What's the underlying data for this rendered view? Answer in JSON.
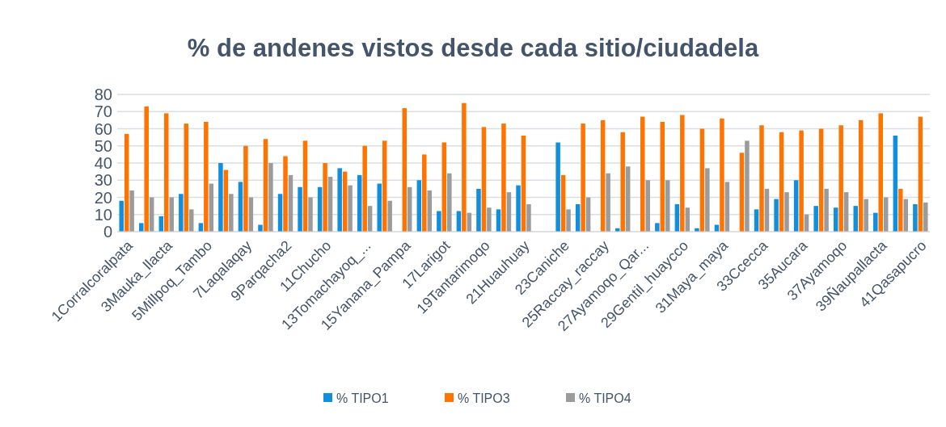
{
  "chart_data": {
    "type": "bar",
    "title": "% de andenes vistos desde cada sitio/ciudadela",
    "categories": [
      "1Corralcoralpata",
      null,
      "3Mauka_llacta",
      null,
      "5Millpoq_Tambo",
      null,
      "7Laqalaqay",
      null,
      "9Parqacha2",
      null,
      "11Chucho",
      null,
      "13Tomachayoq_...",
      null,
      "15Yanana_Pampa",
      null,
      "17Larigot",
      null,
      "19Tantarimoqo",
      null,
      "21Huauhuay",
      null,
      "23Caniche",
      null,
      "25Raccay_raccay",
      null,
      "27Ayamoqo_Qar...",
      null,
      "29Gentil_huaycco",
      null,
      "31Maya_maya",
      null,
      "33Ccecca",
      null,
      "35Aucara",
      null,
      "37Ayamoqo",
      null,
      "39Ñaupallacta",
      null,
      "41Qasapucro"
    ],
    "series": [
      {
        "name": "% TIPO1",
        "color": "#0f8fde",
        "values": [
          18,
          5,
          9,
          22,
          5,
          40,
          29,
          4,
          22,
          26,
          26,
          37,
          33,
          28,
          0,
          30,
          12,
          12,
          25,
          13,
          27,
          0,
          52,
          16,
          0,
          2,
          0,
          5,
          16,
          2,
          4,
          0,
          13,
          19,
          30,
          15,
          14,
          15,
          11,
          56,
          16
        ]
      },
      {
        "name": "% TIPO3",
        "color": "#ff7300",
        "values": [
          57,
          73,
          69,
          63,
          64,
          36,
          50,
          54,
          44,
          53,
          40,
          35,
          50,
          53,
          72,
          45,
          52,
          75,
          61,
          63,
          56,
          0,
          33,
          63,
          65,
          58,
          67,
          64,
          68,
          60,
          66,
          46,
          62,
          58,
          59,
          60,
          62,
          65,
          69,
          25,
          67
        ]
      },
      {
        "name": "% TIPO4",
        "color": "#9b9b9b",
        "values": [
          24,
          20,
          20,
          13,
          28,
          22,
          20,
          40,
          33,
          20,
          32,
          27,
          15,
          18,
          26,
          24,
          34,
          11,
          14,
          23,
          16,
          0,
          13,
          20,
          34,
          38,
          30,
          30,
          14,
          37,
          29,
          53,
          25,
          23,
          10,
          25,
          23,
          19,
          20,
          19,
          17
        ]
      }
    ],
    "ylim": [
      0,
      80
    ],
    "yticks": [
      0,
      10,
      20,
      30,
      40,
      50,
      60,
      70,
      80
    ],
    "grid": "y",
    "legend": "bottom"
  }
}
